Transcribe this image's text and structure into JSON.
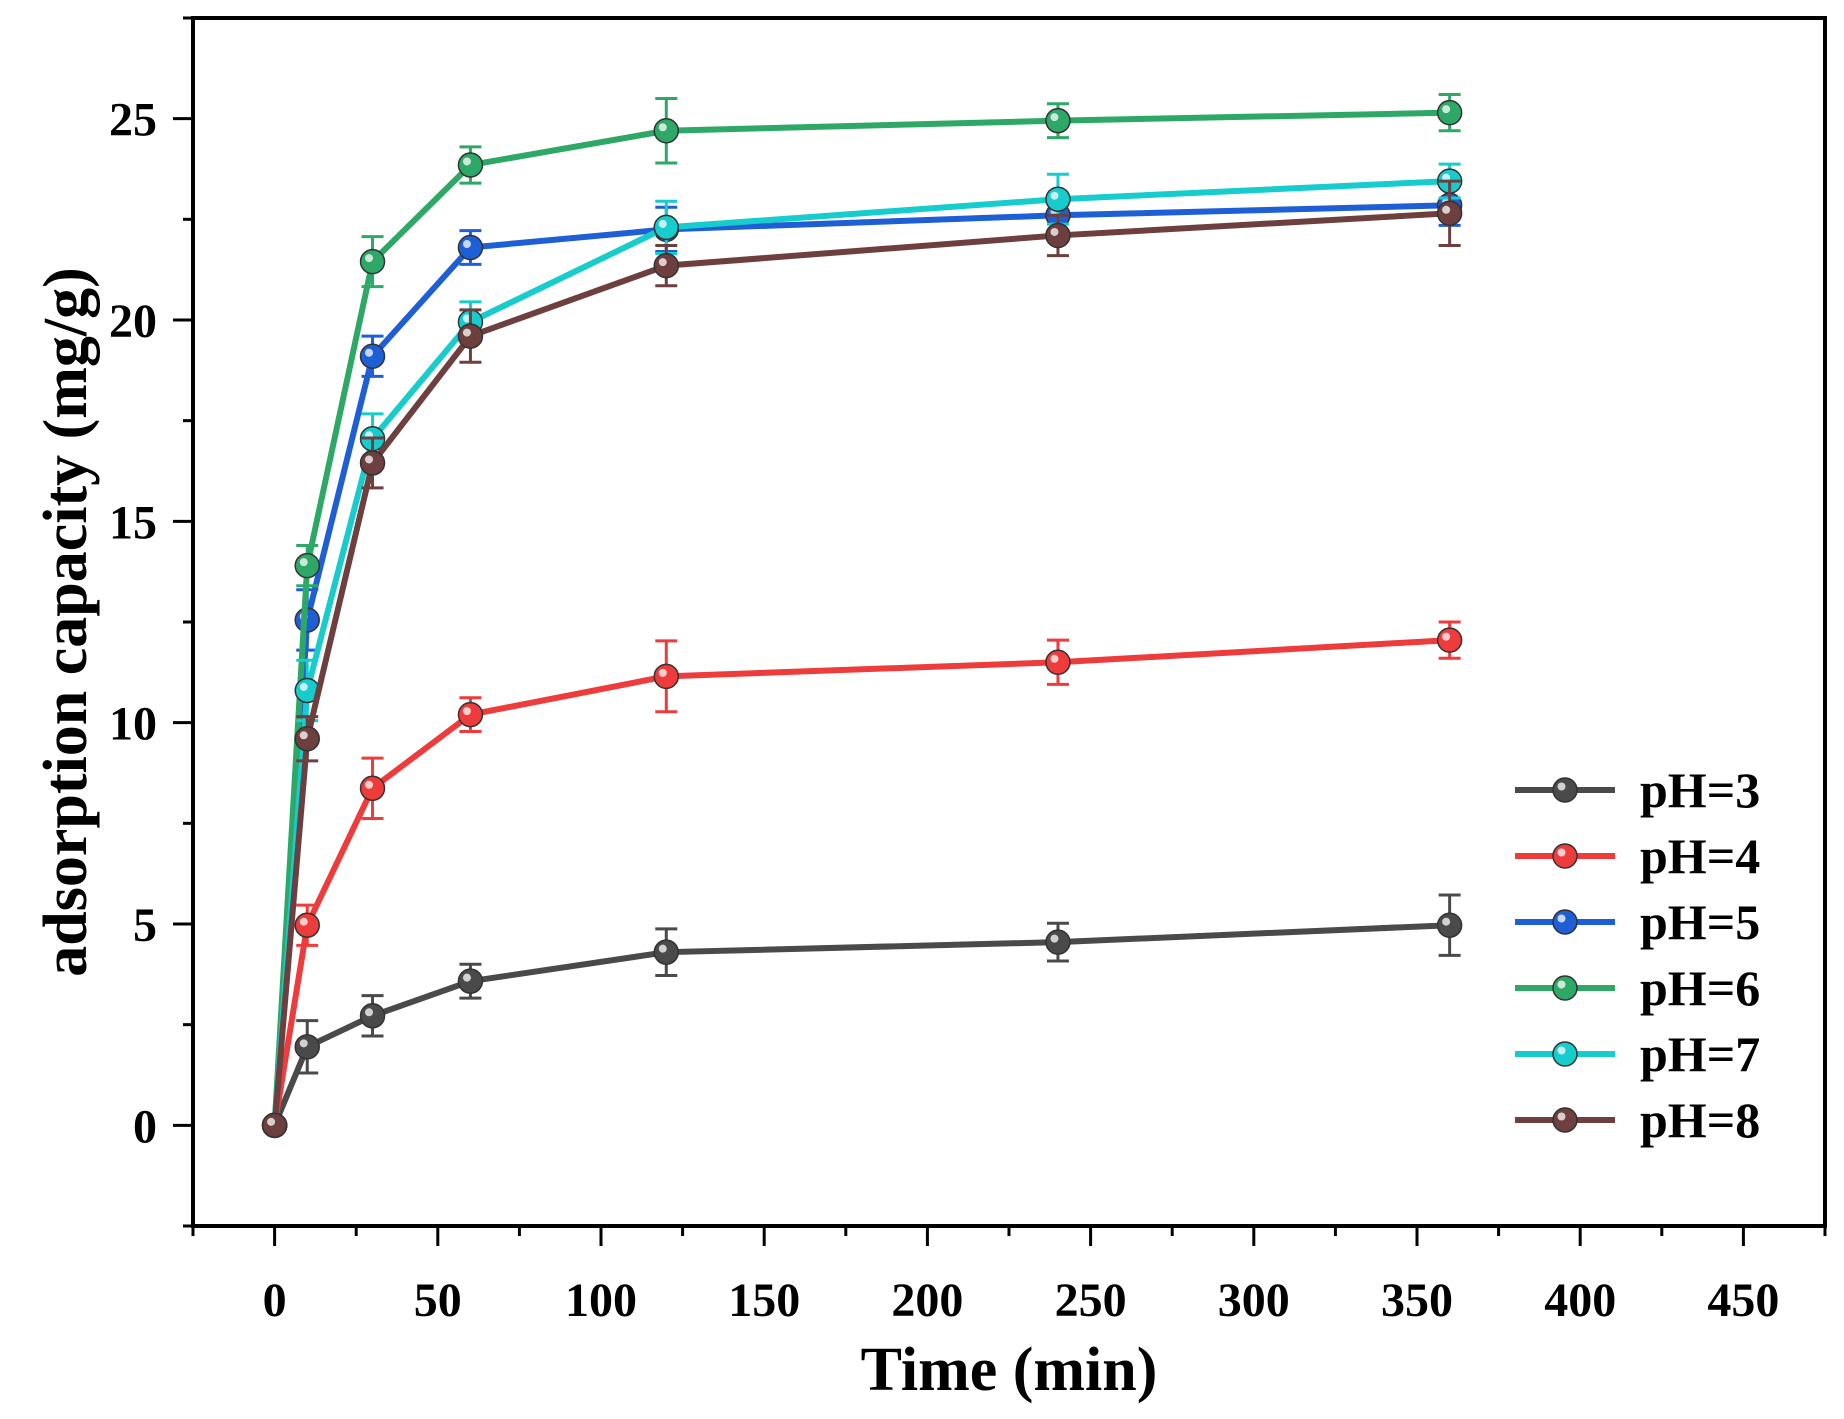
{
  "chart_data": {
    "type": "line",
    "title": "",
    "xlabel": "Time (min)",
    "ylabel": "adsorption capacity (mg/g)",
    "xlim": [
      -25,
      475
    ],
    "ylim": [
      -2.5,
      27.5
    ],
    "xticks": [
      0,
      50,
      100,
      150,
      200,
      250,
      300,
      350,
      400,
      450
    ],
    "yticks": [
      0,
      5,
      10,
      15,
      20,
      25
    ],
    "x": [
      0,
      10,
      30,
      60,
      120,
      240,
      360
    ],
    "legend_position": "bottom-right",
    "series": [
      {
        "name": "pH=3",
        "color": "#4a4a4a",
        "values": [
          0,
          1.95,
          2.72,
          3.58,
          4.3,
          4.55,
          4.97
        ],
        "errors": [
          0,
          0.65,
          0.5,
          0.42,
          0.58,
          0.47,
          0.75
        ]
      },
      {
        "name": "pH=4",
        "color": "#ee3b3b",
        "values": [
          0,
          4.97,
          8.37,
          10.2,
          11.15,
          11.5,
          12.05
        ],
        "errors": [
          0,
          0.5,
          0.75,
          0.42,
          0.88,
          0.55,
          0.45
        ]
      },
      {
        "name": "pH=5",
        "color": "#1f5fd6",
        "values": [
          0,
          12.55,
          19.1,
          21.8,
          22.25,
          22.6,
          22.85
        ],
        "errors": [
          0,
          0.75,
          0.5,
          0.42,
          0.55,
          0.45,
          0.5
        ]
      },
      {
        "name": "pH=6",
        "color": "#2ea866",
        "values": [
          0,
          13.9,
          21.45,
          23.85,
          24.7,
          24.95,
          25.15
        ],
        "errors": [
          0,
          0.5,
          0.62,
          0.45,
          0.8,
          0.42,
          0.45
        ]
      },
      {
        "name": "pH=7",
        "color": "#16cccc",
        "values": [
          0,
          10.8,
          17.05,
          19.95,
          22.3,
          23.0,
          23.45
        ],
        "errors": [
          0,
          0.75,
          0.62,
          0.5,
          0.65,
          0.62,
          0.42
        ]
      },
      {
        "name": "pH=8",
        "color": "#6e3f3f",
        "values": [
          0,
          9.6,
          16.45,
          19.6,
          21.35,
          22.1,
          22.65
        ],
        "errors": [
          0,
          0.55,
          0.62,
          0.65,
          0.5,
          0.5,
          0.8
        ]
      }
    ]
  }
}
